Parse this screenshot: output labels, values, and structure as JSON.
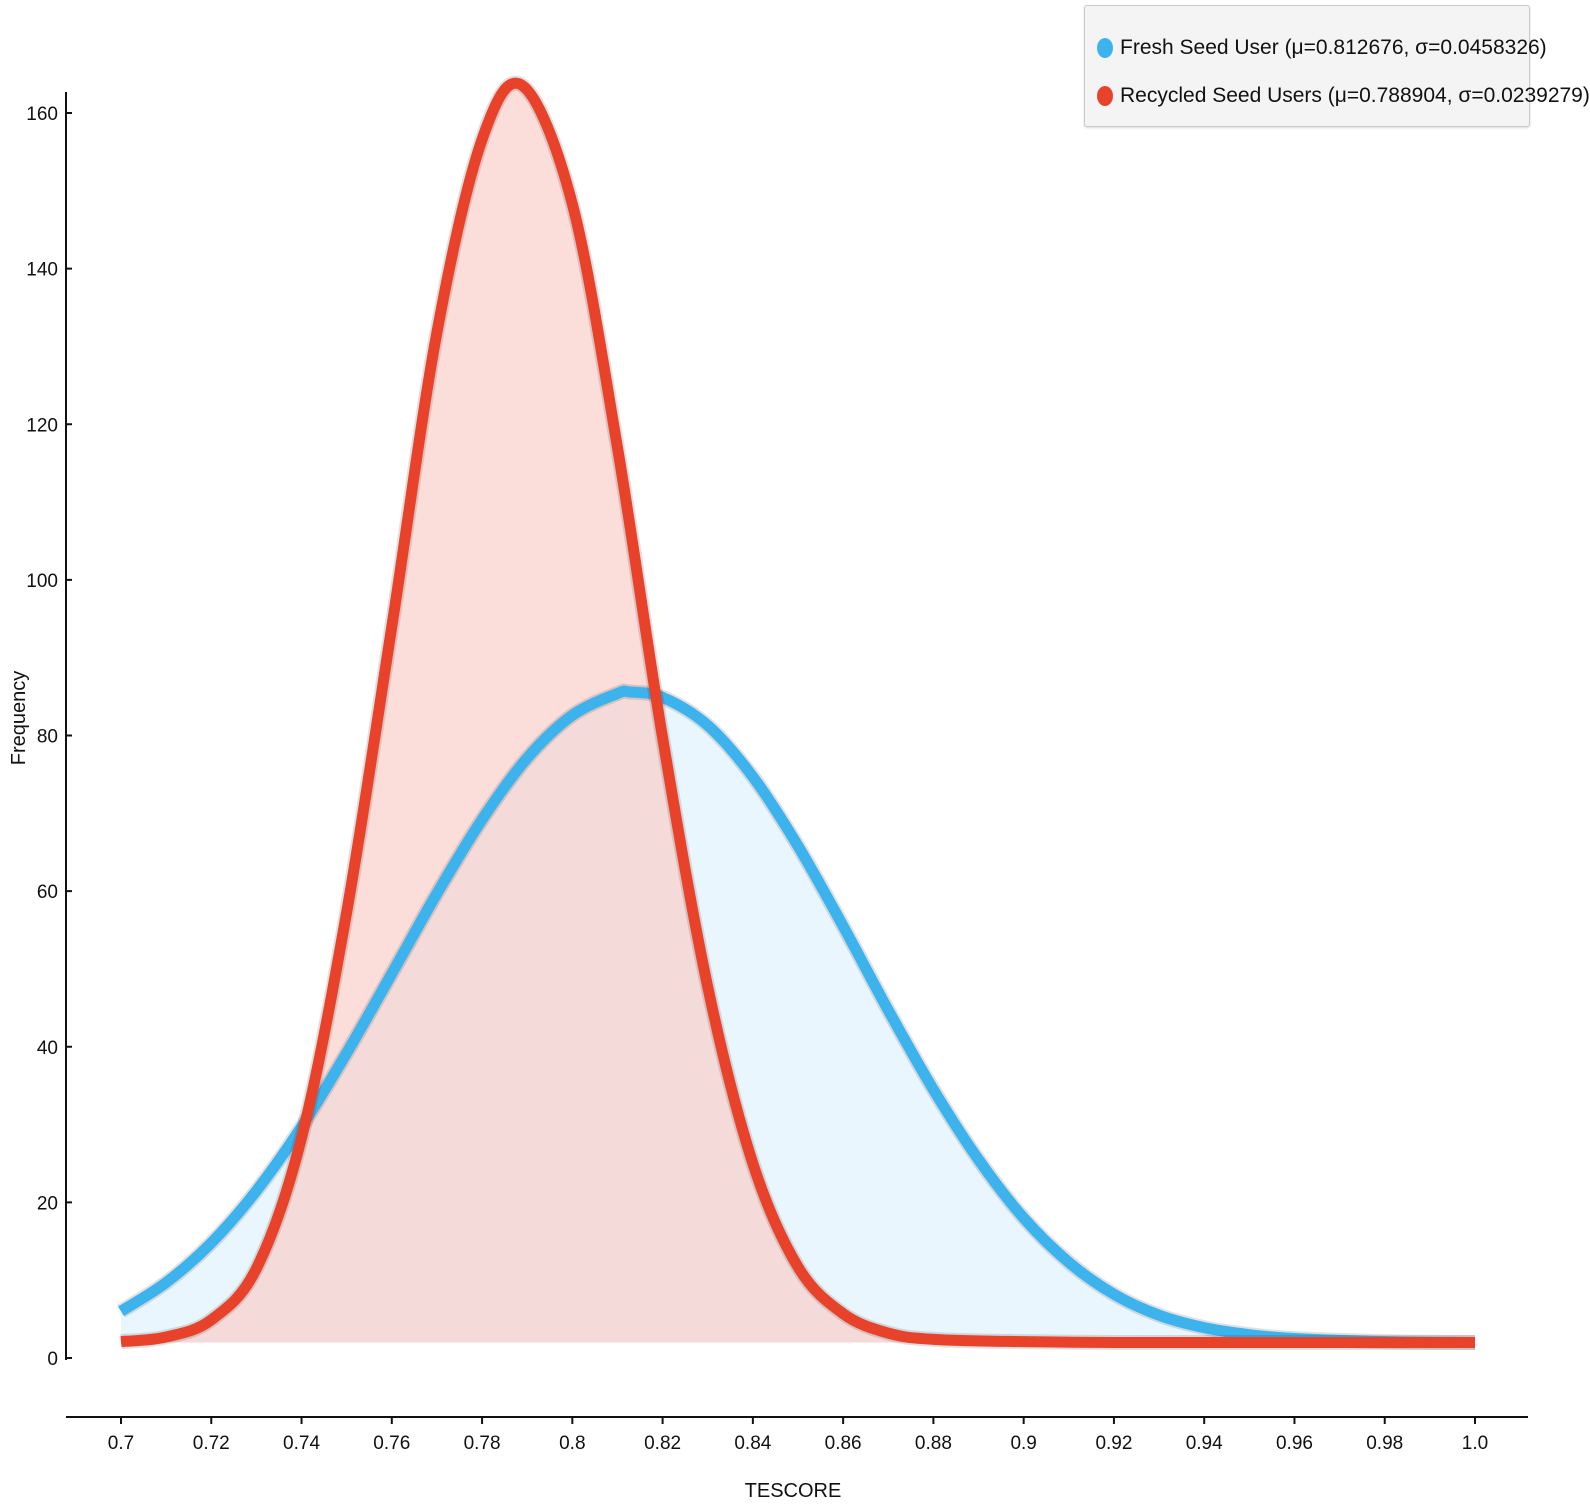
{
  "chart_data": {
    "type": "area",
    "xlabel": "TESCORE",
    "ylabel": "Frequency",
    "xlim": [
      0.7,
      1.0
    ],
    "ylim": [
      0,
      160
    ],
    "x_ticks": [
      "0.7",
      "0.72",
      "0.74",
      "0.76",
      "0.78",
      "0.8",
      "0.82",
      "0.84",
      "0.86",
      "0.88",
      "0.9",
      "0.92",
      "0.94",
      "0.96",
      "0.98",
      "1.0"
    ],
    "y_ticks": [
      "0",
      "20",
      "40",
      "60",
      "80",
      "100",
      "120",
      "140",
      "160"
    ],
    "grid": false,
    "legend_position": "top-right",
    "baseline": 2,
    "series": [
      {
        "name": "Fresh Seed User (μ=0.812676, σ=0.0458326)",
        "color": "#3db3ee",
        "fill": "#d9effb",
        "x": [
          0.7,
          0.71,
          0.72,
          0.73,
          0.74,
          0.75,
          0.76,
          0.77,
          0.78,
          0.79,
          0.8,
          0.81,
          0.8127,
          0.82,
          0.83,
          0.84,
          0.85,
          0.86,
          0.87,
          0.88,
          0.89,
          0.9,
          0.91,
          0.92,
          0.93,
          0.94,
          0.95,
          0.96,
          0.98,
          1.0
        ],
        "y": [
          6.0,
          9.7,
          14.8,
          21.5,
          29.7,
          39.2,
          49.4,
          59.7,
          69.2,
          77.1,
          82.6,
          85.4,
          85.6,
          84.9,
          81.3,
          74.7,
          65.8,
          55.5,
          44.7,
          34.5,
          25.5,
          18.0,
          12.3,
          8.2,
          5.5,
          3.9,
          3.0,
          2.5,
          2.1,
          2.0
        ]
      },
      {
        "name": "Recycled Seed Users (μ=0.788904, σ=0.0239279)",
        "color": "#e8432a",
        "fill": "#f9cbc4",
        "x": [
          0.7,
          0.71,
          0.72,
          0.73,
          0.74,
          0.75,
          0.76,
          0.77,
          0.78,
          0.789,
          0.8,
          0.81,
          0.82,
          0.83,
          0.84,
          0.85,
          0.86,
          0.87,
          0.88,
          0.9,
          0.92,
          0.94,
          0.96,
          0.98,
          1.0
        ],
        "y": [
          2.1,
          2.7,
          4.9,
          11.5,
          28.3,
          57.3,
          94.0,
          131.8,
          156.6,
          163.5,
          148.3,
          117.0,
          79.7,
          47.7,
          25.0,
          11.7,
          5.7,
          3.2,
          2.4,
          2.1,
          2.0,
          2.0,
          2.0,
          2.0,
          2.0
        ]
      }
    ]
  }
}
